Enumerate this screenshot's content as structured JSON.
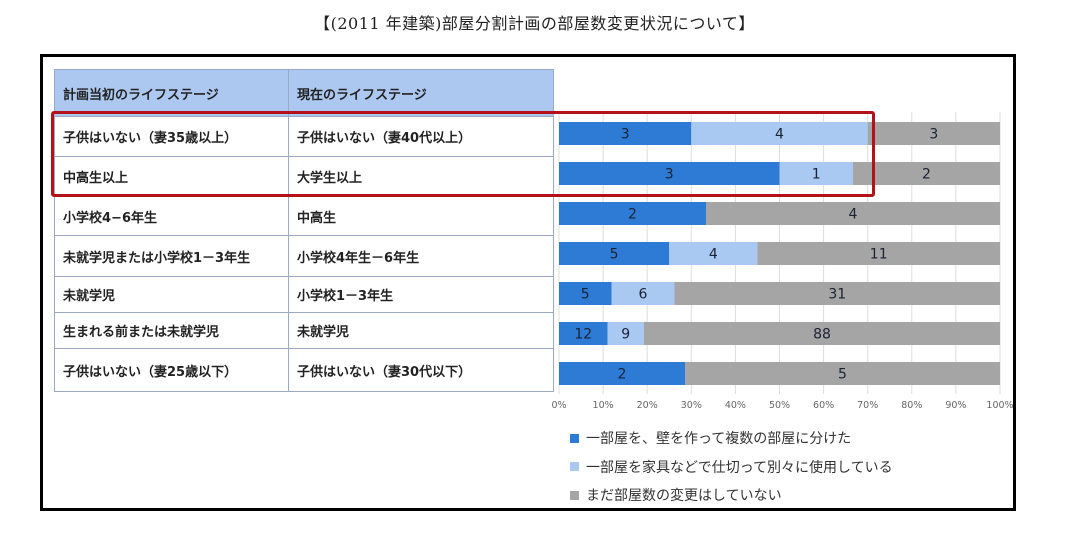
{
  "title": "【(2011 年建築)部屋分割計画の部屋数変更状況について】",
  "table": {
    "headers": [
      "計画当初のライフステージ",
      "現在のライフステージ"
    ],
    "rows": [
      [
        "子供はいない（妻35歳以上）",
        "子供はいない（妻40代以上）"
      ],
      [
        "中高生以上",
        "大学生以上"
      ],
      [
        "小学校4−6年生",
        "中高生"
      ],
      [
        "未就学児または小学校1－3年生",
        "小学校4年生－6年生"
      ],
      [
        "未就学児",
        "小学校1－3年生"
      ],
      [
        "生まれる前または未就学児",
        "未就学児"
      ],
      [
        "子供はいない（妻25歳以下）",
        "子供はいない（妻30代以下）"
      ]
    ]
  },
  "colors": {
    "series1": "#2e7bd6",
    "series2": "#a9c8f2",
    "series3": "#a5a5a5",
    "highlight": "#b3121b",
    "grid": "#dddddd"
  },
  "chart_data": {
    "type": "bar",
    "orientation": "horizontal",
    "stacked": "percent",
    "categories": [
      "子供はいない（妻35歳以上）→子供はいない（妻40代以上）",
      "中高生以上→大学生以上",
      "小学校4−6年生→中高生",
      "未就学児または小学校1－3年生→小学校4年生－6年生",
      "未就学児→小学校1－3年生",
      "生まれる前または未就学児→未就学児",
      "子供はいない（妻25歳以下）→子供はいない（妻30代以下）"
    ],
    "series": [
      {
        "name": "一部屋を、壁を作って複数の部屋に分けた",
        "values": [
          3,
          3,
          2,
          5,
          5,
          12,
          2
        ]
      },
      {
        "name": "一部屋を家具などで仕切って別々に使用している",
        "values": [
          4,
          1,
          0,
          4,
          6,
          9,
          0
        ]
      },
      {
        "name": "まだ部屋数の変更はしていない",
        "values": [
          3,
          2,
          4,
          11,
          31,
          88,
          5
        ]
      }
    ],
    "xlim": [
      0,
      100
    ],
    "xticks": [
      "0%",
      "10%",
      "20%",
      "30%",
      "40%",
      "50%",
      "60%",
      "70%",
      "80%",
      "90%",
      "100%"
    ],
    "grid": true,
    "legend": "bottom",
    "highlighted_rows": [
      0,
      1
    ]
  }
}
